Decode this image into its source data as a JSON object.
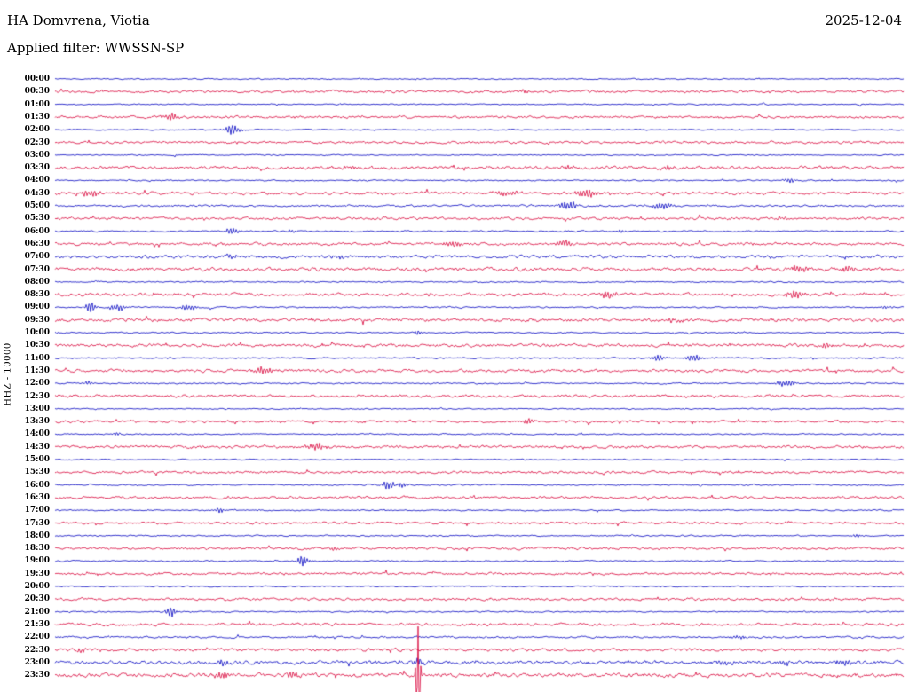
{
  "header": {
    "station_title": "HA Domvrena, Viotia",
    "date": "2025-12-04",
    "filter_label": "Applied filter: WWSSN-SP"
  },
  "chart_data": {
    "type": "line",
    "subtype": "helicorder-seismogram",
    "title": "HA Domvrena, Viotia",
    "date": "2025-12-04",
    "filter": "WWSSN-SP",
    "ylabel": "HHZ - 10000",
    "row_interval_minutes": 30,
    "start_time": "00:00",
    "end_time": "23:30",
    "grid": false,
    "legend": "none",
    "trace_colors": {
      "blue": "#0000c0",
      "red": "#d80038"
    },
    "rows": [
      {
        "t": "00:00",
        "c": "blue",
        "n": 0.5,
        "ev": []
      },
      {
        "t": "00:30",
        "c": "red",
        "n": 1.0,
        "ev": [
          [
            0.553,
            2,
            6
          ]
        ]
      },
      {
        "t": "01:00",
        "c": "blue",
        "n": 0.5,
        "ev": []
      },
      {
        "t": "01:30",
        "c": "red",
        "n": 1.0,
        "ev": [
          [
            0.136,
            4,
            9
          ]
        ]
      },
      {
        "t": "02:00",
        "c": "blue",
        "n": 0.5,
        "ev": [
          [
            0.209,
            6,
            9
          ]
        ]
      },
      {
        "t": "02:30",
        "c": "red",
        "n": 1.0,
        "ev": []
      },
      {
        "t": "03:00",
        "c": "blue",
        "n": 0.5,
        "ev": []
      },
      {
        "t": "03:30",
        "c": "red",
        "n": 1.3,
        "ev": [
          [
            0.345,
            2,
            8
          ],
          [
            0.605,
            2,
            8
          ],
          [
            0.72,
            2.2,
            10
          ]
        ]
      },
      {
        "t": "04:00",
        "c": "blue",
        "n": 0.55,
        "ev": [
          [
            0.866,
            2.5,
            8
          ]
        ]
      },
      {
        "t": "04:30",
        "c": "red",
        "n": 1.2,
        "ev": [
          [
            0.042,
            3.5,
            12
          ],
          [
            0.532,
            3,
            14
          ],
          [
            0.626,
            5,
            12
          ]
        ]
      },
      {
        "t": "05:00",
        "c": "blue",
        "n": 0.8,
        "ev": [
          [
            0.605,
            6,
            10
          ],
          [
            0.715,
            4,
            12
          ]
        ]
      },
      {
        "t": "05:30",
        "c": "red",
        "n": 1.1,
        "ev": [
          [
            0.856,
            2,
            8
          ]
        ]
      },
      {
        "t": "06:00",
        "c": "blue",
        "n": 0.6,
        "ev": [
          [
            0.209,
            4,
            8
          ],
          [
            0.28,
            2,
            6
          ],
          [
            0.668,
            2,
            6
          ]
        ]
      },
      {
        "t": "06:30",
        "c": "red",
        "n": 1.1,
        "ev": [
          [
            0.47,
            3,
            10
          ],
          [
            0.6,
            4,
            9
          ]
        ]
      },
      {
        "t": "07:00",
        "c": "blue",
        "n": 1.3,
        "ev": [
          [
            0.209,
            2,
            8
          ],
          [
            0.334,
            2,
            8
          ]
        ]
      },
      {
        "t": "07:30",
        "c": "red",
        "n": 1.4,
        "ev": [
          [
            0.877,
            3.5,
            10
          ],
          [
            0.934,
            4,
            8
          ]
        ]
      },
      {
        "t": "08:00",
        "c": "blue",
        "n": 0.55,
        "ev": []
      },
      {
        "t": "08:30",
        "c": "red",
        "n": 1.3,
        "ev": [
          [
            0.652,
            4.5,
            9
          ],
          [
            0.872,
            4.5,
            10
          ]
        ]
      },
      {
        "t": "09:00",
        "c": "blue",
        "n": 0.6,
        "ev": [
          [
            0.042,
            6,
            7
          ],
          [
            0.073,
            4,
            10
          ],
          [
            0.157,
            3.5,
            9
          ],
          [
            0.98,
            2,
            6
          ]
        ]
      },
      {
        "t": "09:30",
        "c": "red",
        "n": 1.4,
        "ev": [
          [
            0.73,
            2,
            8
          ]
        ]
      },
      {
        "t": "10:00",
        "c": "blue",
        "n": 0.55,
        "ev": [
          [
            0.428,
            2.5,
            6
          ]
        ]
      },
      {
        "t": "10:30",
        "c": "red",
        "n": 1.25,
        "ev": [
          [
            0.908,
            2.5,
            8
          ]
        ]
      },
      {
        "t": "11:00",
        "c": "blue",
        "n": 0.6,
        "ev": [
          [
            0.71,
            4,
            8
          ],
          [
            0.752,
            4.5,
            8
          ]
        ]
      },
      {
        "t": "11:30",
        "c": "red",
        "n": 1.2,
        "ev": [
          [
            0.245,
            4,
            12
          ]
        ]
      },
      {
        "t": "12:00",
        "c": "blue",
        "n": 0.6,
        "ev": [
          [
            0.04,
            2,
            6
          ],
          [
            0.861,
            4,
            10
          ]
        ]
      },
      {
        "t": "12:30",
        "c": "red",
        "n": 1.1,
        "ev": []
      },
      {
        "t": "13:00",
        "c": "blue",
        "n": 0.5,
        "ev": []
      },
      {
        "t": "13:30",
        "c": "red",
        "n": 1.0,
        "ev": [
          [
            0.26,
            2,
            6
          ],
          [
            0.558,
            3.5,
            8
          ]
        ]
      },
      {
        "t": "14:00",
        "c": "blue",
        "n": 0.55,
        "ev": [
          [
            0.073,
            2,
            5
          ]
        ]
      },
      {
        "t": "14:30",
        "c": "red",
        "n": 1.15,
        "ev": [
          [
            0.308,
            4,
            10
          ]
        ]
      },
      {
        "t": "15:00",
        "c": "blue",
        "n": 0.5,
        "ev": []
      },
      {
        "t": "15:30",
        "c": "red",
        "n": 1.0,
        "ev": []
      },
      {
        "t": "16:00",
        "c": "blue",
        "n": 0.55,
        "ev": [
          [
            0.394,
            6,
            7
          ],
          [
            0.408,
            4,
            6
          ]
        ]
      },
      {
        "t": "16:30",
        "c": "red",
        "n": 1.0,
        "ev": []
      },
      {
        "t": "17:00",
        "c": "blue",
        "n": 0.55,
        "ev": [
          [
            0.193,
            3,
            6
          ]
        ]
      },
      {
        "t": "17:30",
        "c": "red",
        "n": 1.0,
        "ev": []
      },
      {
        "t": "18:00",
        "c": "blue",
        "n": 0.55,
        "ev": [
          [
            0.945,
            2,
            6
          ]
        ]
      },
      {
        "t": "18:30",
        "c": "red",
        "n": 1.05,
        "ev": [
          [
            0.329,
            2.5,
            5
          ]
        ]
      },
      {
        "t": "19:00",
        "c": "blue",
        "n": 0.55,
        "ev": [
          [
            0.292,
            6,
            7
          ]
        ]
      },
      {
        "t": "19:30",
        "c": "red",
        "n": 1.0,
        "ev": []
      },
      {
        "t": "20:00",
        "c": "blue",
        "n": 0.5,
        "ev": []
      },
      {
        "t": "20:30",
        "c": "red",
        "n": 1.05,
        "ev": []
      },
      {
        "t": "21:00",
        "c": "blue",
        "n": 0.55,
        "ev": [
          [
            0.136,
            6,
            6
          ]
        ]
      },
      {
        "t": "21:30",
        "c": "red",
        "n": 1.1,
        "ev": []
      },
      {
        "t": "22:00",
        "c": "blue",
        "n": 0.8,
        "ev": [
          [
            0.804,
            2.5,
            8
          ]
        ]
      },
      {
        "t": "22:30",
        "c": "red",
        "n": 1.2,
        "ev": [
          [
            0.03,
            2,
            6
          ]
        ]
      },
      {
        "t": "23:00",
        "c": "blue",
        "n": 1.5,
        "ev": [
          [
            0.198,
            3,
            8
          ],
          [
            0.428,
            5,
            6
          ],
          [
            0.79,
            3,
            8
          ],
          [
            0.86,
            3,
            8
          ],
          [
            0.93,
            4,
            8
          ]
        ]
      },
      {
        "t": "23:30",
        "c": "red",
        "n": 1.6,
        "ev": [
          [
            0.198,
            5,
            8
          ],
          [
            0.281,
            4,
            6
          ],
          [
            0.428,
            55,
            2.5
          ]
        ]
      }
    ]
  }
}
